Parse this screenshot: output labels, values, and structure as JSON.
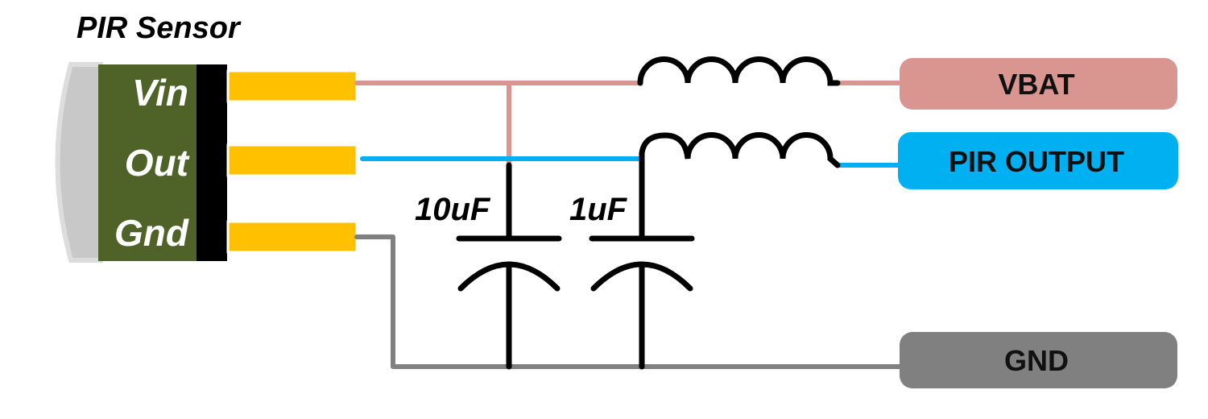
{
  "sensor": {
    "title": "PIR Sensor",
    "pins": [
      "Vin",
      "Out",
      "Gnd"
    ]
  },
  "capacitors": [
    "10uF",
    "1uF"
  ],
  "terminals": {
    "vbat": "VBAT",
    "pir_output": "PIR OUTPUT",
    "gnd": "GND"
  },
  "colors": {
    "vin_wire": "#d9958f",
    "out_wire": "#00b0f0",
    "gnd_wire": "#808080",
    "sensor_body": "#4f6228",
    "pin_pad": "#ffc000",
    "vbat_box": "#d9958f",
    "output_box": "#00b0f0",
    "gnd_box": "#808080"
  }
}
